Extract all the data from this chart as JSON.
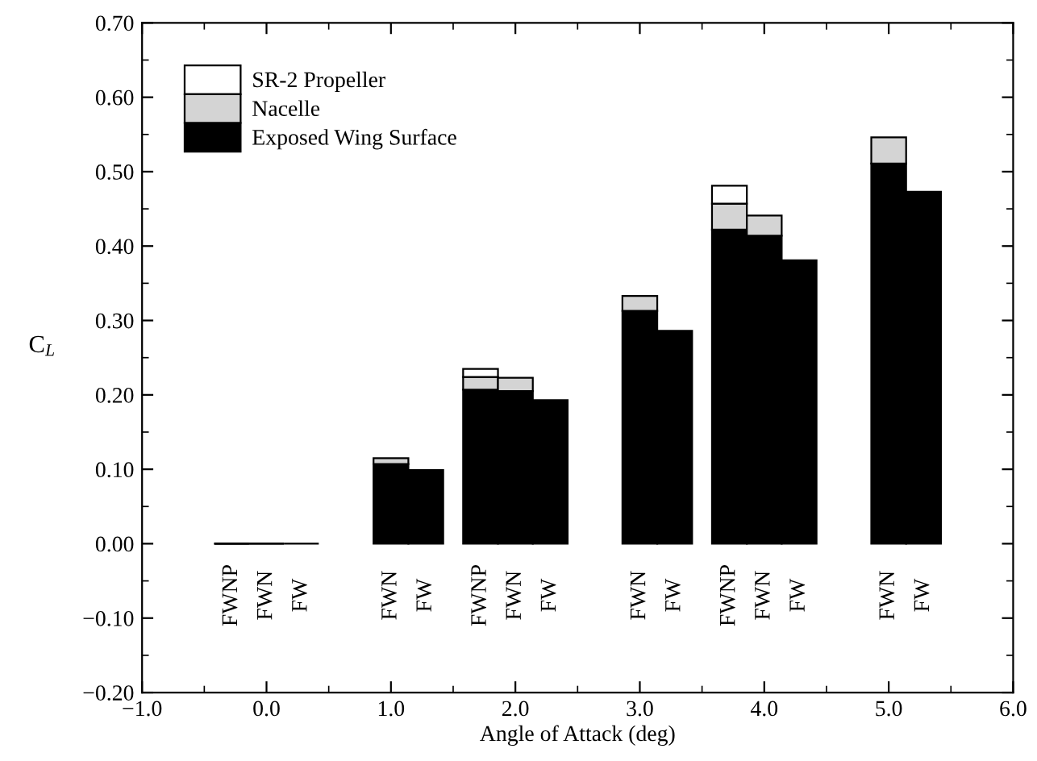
{
  "chart_data": {
    "type": "bar",
    "stacked": true,
    "xlabel": "Angle of Attack (deg)",
    "ylabel": "C$_{L}$",
    "x": [
      -0.28,
      0,
      0.28,
      1,
      1.28,
      1.72,
      2,
      2.28,
      3,
      3.28,
      3.72,
      4,
      4.28,
      5,
      5.28
    ],
    "series": [
      {
        "name": "Exposed Wing Surface",
        "color": "#000000",
        "values": [
          0,
          0,
          0,
          0.107,
          0.099,
          0.207,
          0.205,
          0.193,
          0.313,
          0.286,
          0.422,
          0.414,
          0.381,
          0.511,
          0.473
        ]
      },
      {
        "name": "Nacelle",
        "color": "#d4d4d4",
        "values": [
          0,
          0,
          null,
          0.008,
          null,
          0.017,
          0.018,
          null,
          0.02,
          null,
          0.035,
          0.027,
          null,
          0.035,
          null
        ]
      },
      {
        "name": "SR-2 Propeller",
        "color": "#ffffff",
        "values": [
          0,
          null,
          null,
          null,
          null,
          0.011,
          null,
          null,
          null,
          null,
          0.024,
          null,
          null,
          null,
          null
        ]
      }
    ],
    "xlim": [
      -1.0,
      6.0
    ],
    "xticks": [
      {
        "value": -1.0,
        "label": "−1.0"
      },
      {
        "value": 0.0,
        "label": "0.0"
      },
      {
        "value": 1.0,
        "label": "1.0"
      },
      {
        "value": 2.0,
        "label": "2.0"
      },
      {
        "value": 3.0,
        "label": "3.0"
      },
      {
        "value": 4.0,
        "label": "4.0"
      },
      {
        "value": 5.0,
        "label": "5.0"
      },
      {
        "value": 6.0,
        "label": "6.0"
      }
    ],
    "ylim": [
      -0.2,
      0.7
    ],
    "yticks": [
      {
        "value": -0.2,
        "label": "−0.20"
      },
      {
        "value": -0.1,
        "label": "−0.10"
      },
      {
        "value": 0.0,
        "label": "0.00"
      },
      {
        "value": 0.1,
        "label": "0.10"
      },
      {
        "value": 0.2,
        "label": "0.20"
      },
      {
        "value": 0.3,
        "label": "0.30"
      },
      {
        "value": 0.4,
        "label": "0.40"
      },
      {
        "value": 0.5,
        "label": "0.50"
      },
      {
        "value": 0.6,
        "label": "0.60"
      },
      {
        "value": 0.7,
        "label": "0.70"
      }
    ],
    "annotations": [
      "FWNP",
      "FWN",
      "FW",
      "FWN",
      "FW",
      "FWNP",
      "FWN",
      "FW",
      "FWN",
      "FW",
      "FWNP",
      "FWN",
      "FW",
      "FWN",
      "FW"
    ],
    "legend": "top left",
    "grid": false
  }
}
